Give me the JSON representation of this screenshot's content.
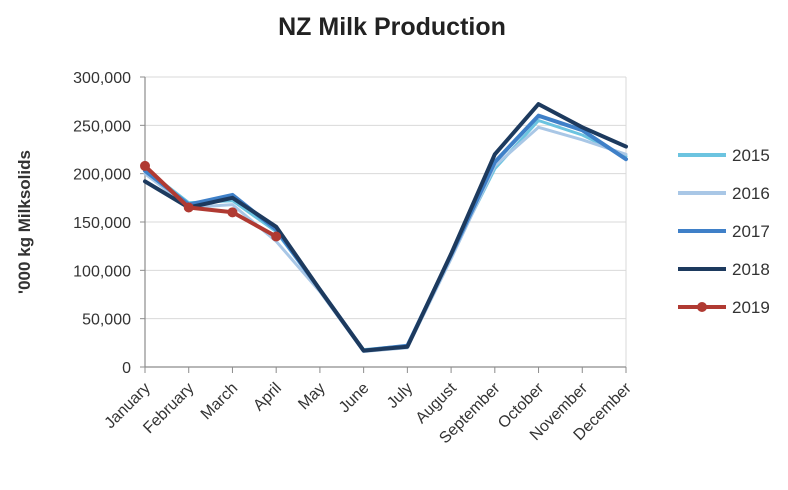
{
  "chart_data": {
    "type": "line",
    "title": "NZ Milk Production",
    "xlabel": "",
    "ylabel": "'000 kg Milksolids",
    "ylim": [
      0,
      300000
    ],
    "yticks": [
      0,
      50000,
      100000,
      150000,
      200000,
      250000,
      300000
    ],
    "ytick_labels": [
      "0",
      "50,000",
      "100,000",
      "150,000",
      "200,000",
      "250,000",
      "300,000"
    ],
    "grid": true,
    "legend_position": "right",
    "categories": [
      "January",
      "February",
      "March",
      "April",
      "May",
      "June",
      "July",
      "August",
      "September",
      "October",
      "November",
      "December"
    ],
    "series": [
      {
        "name": "2015",
        "color": "#6cc4e0",
        "values": [
          205000,
          170000,
          172000,
          140000,
          80000,
          18000,
          22000,
          115000,
          205000,
          255000,
          240000,
          218000
        ]
      },
      {
        "name": "2016",
        "color": "#a9c7e6",
        "values": [
          200000,
          165000,
          168000,
          130000,
          78000,
          16000,
          20000,
          112000,
          208000,
          248000,
          235000,
          220000
        ]
      },
      {
        "name": "2017",
        "color": "#3f80c8",
        "values": [
          203000,
          168000,
          178000,
          142000,
          80000,
          17000,
          22000,
          116000,
          212000,
          260000,
          245000,
          215000
        ]
      },
      {
        "name": "2018",
        "color": "#1d3a5e",
        "values": [
          192000,
          165000,
          175000,
          145000,
          80000,
          17000,
          21000,
          117000,
          220000,
          272000,
          248000,
          228000
        ]
      },
      {
        "name": "2019",
        "color": "#b03a32",
        "marker": "circle",
        "values": [
          208000,
          165000,
          160000,
          135000,
          null,
          null,
          null,
          null,
          null,
          null,
          null,
          null
        ]
      }
    ]
  }
}
